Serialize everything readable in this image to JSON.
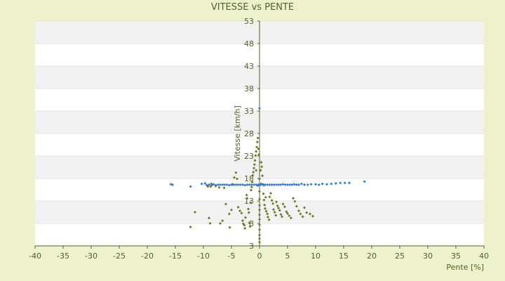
{
  "chart_data": {
    "type": "scatter",
    "title": "VITESSE vs PENTE",
    "xlabel": "Pente [%]",
    "ylabel": "Vitesse [km/h]",
    "xlim": [
      -40,
      40
    ],
    "ylim": [
      3,
      53
    ],
    "xticks": [
      -40,
      -35,
      -30,
      -25,
      -20,
      -15,
      -10,
      -5,
      0,
      5,
      10,
      15,
      20,
      25,
      30,
      35,
      40
    ],
    "yticks": [
      3,
      8,
      13,
      18,
      23,
      28,
      33,
      38,
      43,
      48,
      53
    ],
    "ytick_labels": [
      "3",
      "8",
      "13",
      "18",
      "23",
      "28",
      "33",
      "38",
      "43",
      "48",
      "53"
    ],
    "legend": "none",
    "grid": "horizontal bands",
    "colors": {
      "background": "#eef2cc",
      "plot_band_light": "#ffffff",
      "plot_band_dark": "#f2f2f2",
      "axis": "#4f6228",
      "series_green": "#6b7a1f",
      "series_blue": "#2e7bd6"
    },
    "series": [
      {
        "color": "#6b7a1f",
        "points": [
          [
            -12.3,
            7.2
          ],
          [
            -11.5,
            10.5
          ],
          [
            -9.0,
            9.2
          ],
          [
            -8.8,
            8.0
          ],
          [
            -8.5,
            16.5
          ],
          [
            -8.7,
            16.2
          ],
          [
            -7.8,
            16.3
          ],
          [
            -7.2,
            16.0
          ],
          [
            -7.0,
            8.0
          ],
          [
            -6.6,
            8.6
          ],
          [
            -6.0,
            12.3
          ],
          [
            -5.4,
            10.1
          ],
          [
            -5.3,
            7.1
          ],
          [
            -5.0,
            11.0
          ],
          [
            -4.8,
            16.7
          ],
          [
            -4.5,
            18.2
          ],
          [
            -4.2,
            19.3
          ],
          [
            -4.0,
            17.9
          ],
          [
            -3.8,
            11.6
          ],
          [
            -3.5,
            10.8
          ],
          [
            -3.2,
            10.3
          ],
          [
            -3.0,
            8.6
          ],
          [
            -2.9,
            7.9
          ],
          [
            -2.7,
            7.6
          ],
          [
            -2.6,
            6.9
          ],
          [
            -2.5,
            9.3
          ],
          [
            -2.3,
            14.3
          ],
          [
            -2.2,
            13.6
          ],
          [
            -2.0,
            11.2
          ],
          [
            -1.9,
            10.4
          ],
          [
            -1.8,
            8.1
          ],
          [
            -1.7,
            7.3
          ],
          [
            -1.6,
            12.6
          ],
          [
            -1.5,
            15.4
          ],
          [
            -1.4,
            16.1
          ],
          [
            -1.3,
            17.2
          ],
          [
            -1.2,
            18.7
          ],
          [
            -1.1,
            19.4
          ],
          [
            -1.0,
            20.3
          ],
          [
            -0.9,
            21.1
          ],
          [
            -0.8,
            22.0
          ],
          [
            -0.7,
            23.1
          ],
          [
            -0.6,
            24.0
          ],
          [
            -0.5,
            25.0
          ],
          [
            -0.4,
            26.1
          ],
          [
            -0.3,
            27.0
          ],
          [
            -0.2,
            24.6
          ],
          [
            -0.1,
            23.3
          ],
          [
            0.0,
            17.9
          ],
          [
            0.0,
            15.1
          ],
          [
            0.0,
            13.4
          ],
          [
            0.0,
            12.0
          ],
          [
            0.0,
            11.0
          ],
          [
            0.0,
            9.9
          ],
          [
            0.0,
            8.9
          ],
          [
            0.0,
            7.7
          ],
          [
            0.0,
            6.6
          ],
          [
            0.0,
            5.4
          ],
          [
            0.0,
            4.6
          ],
          [
            0.0,
            3.8
          ],
          [
            0.2,
            19.8
          ],
          [
            0.3,
            21.6
          ],
          [
            0.4,
            20.6
          ],
          [
            0.5,
            18.6
          ],
          [
            0.6,
            16.7
          ],
          [
            0.7,
            14.6
          ],
          [
            0.8,
            13.2
          ],
          [
            0.9,
            12.1
          ],
          [
            1.0,
            11.3
          ],
          [
            1.2,
            10.7
          ],
          [
            1.4,
            10.1
          ],
          [
            1.5,
            9.4
          ],
          [
            1.7,
            8.8
          ],
          [
            1.8,
            13.9
          ],
          [
            2.0,
            14.7
          ],
          [
            2.2,
            13.1
          ],
          [
            2.4,
            12.4
          ],
          [
            2.5,
            11.1
          ],
          [
            2.7,
            10.5
          ],
          [
            2.9,
            9.8
          ],
          [
            3.0,
            12.8
          ],
          [
            3.2,
            11.9
          ],
          [
            3.4,
            11.4
          ],
          [
            3.6,
            10.9
          ],
          [
            3.8,
            10.0
          ],
          [
            4.0,
            9.5
          ],
          [
            4.2,
            12.3
          ],
          [
            4.5,
            11.7
          ],
          [
            4.8,
            10.6
          ],
          [
            5.0,
            10.2
          ],
          [
            5.3,
            9.7
          ],
          [
            5.6,
            9.2
          ],
          [
            6.0,
            13.6
          ],
          [
            6.3,
            12.9
          ],
          [
            6.6,
            11.8
          ],
          [
            7.0,
            10.8
          ],
          [
            7.3,
            10.1
          ],
          [
            7.7,
            9.5
          ],
          [
            8.0,
            11.5
          ],
          [
            8.4,
            10.4
          ],
          [
            9.0,
            10.1
          ],
          [
            9.5,
            9.6
          ],
          [
            -9.2,
            16.2
          ],
          [
            -6.3,
            15.9
          ],
          [
            1.1,
            13.8
          ],
          [
            -0.6,
            19.8
          ]
        ]
      },
      {
        "color": "#2e7bd6",
        "points": [
          [
            -15.8,
            16.7
          ],
          [
            -15.5,
            16.6
          ],
          [
            -12.3,
            16.2
          ],
          [
            -10.3,
            16.8
          ],
          [
            -9.7,
            16.9
          ],
          [
            -9.4,
            16.5
          ],
          [
            -9.0,
            16.6
          ],
          [
            -8.6,
            16.8
          ],
          [
            -8.2,
            16.7
          ],
          [
            -7.8,
            16.5
          ],
          [
            -7.4,
            16.6
          ],
          [
            -7.0,
            16.6
          ],
          [
            -6.6,
            16.6
          ],
          [
            -6.2,
            16.6
          ],
          [
            -5.8,
            16.6
          ],
          [
            -5.4,
            16.5
          ],
          [
            -5.0,
            16.6
          ],
          [
            -4.6,
            16.6
          ],
          [
            -4.2,
            16.6
          ],
          [
            -3.8,
            16.6
          ],
          [
            -3.4,
            16.6
          ],
          [
            -3.0,
            16.6
          ],
          [
            -2.6,
            16.5
          ],
          [
            -2.2,
            16.6
          ],
          [
            -1.8,
            16.6
          ],
          [
            -1.4,
            16.6
          ],
          [
            -1.0,
            16.6
          ],
          [
            -0.6,
            16.6
          ],
          [
            -0.2,
            16.6
          ],
          [
            0.2,
            16.6
          ],
          [
            0.6,
            16.6
          ],
          [
            1.0,
            16.6
          ],
          [
            1.4,
            16.6
          ],
          [
            1.8,
            16.6
          ],
          [
            2.2,
            16.6
          ],
          [
            2.6,
            16.6
          ],
          [
            3.0,
            16.6
          ],
          [
            3.4,
            16.6
          ],
          [
            3.8,
            16.6
          ],
          [
            4.2,
            16.7
          ],
          [
            4.6,
            16.6
          ],
          [
            5.0,
            16.6
          ],
          [
            5.4,
            16.6
          ],
          [
            5.8,
            16.6
          ],
          [
            6.2,
            16.7
          ],
          [
            6.6,
            16.6
          ],
          [
            7.0,
            16.6
          ],
          [
            7.5,
            16.8
          ],
          [
            8.0,
            16.6
          ],
          [
            8.6,
            16.6
          ],
          [
            9.2,
            16.7
          ],
          [
            10.0,
            16.7
          ],
          [
            10.6,
            16.6
          ],
          [
            11.2,
            16.8
          ],
          [
            12.0,
            16.7
          ],
          [
            12.8,
            16.8
          ],
          [
            13.6,
            16.9
          ],
          [
            14.4,
            17.0
          ],
          [
            15.2,
            17.0
          ],
          [
            16.0,
            17.0
          ],
          [
            18.7,
            17.3
          ],
          [
            0.0,
            33.6
          ],
          [
            0.3,
            16.8
          ],
          [
            -0.3,
            16.4
          ],
          [
            0.8,
            16.5
          ]
        ]
      }
    ]
  }
}
